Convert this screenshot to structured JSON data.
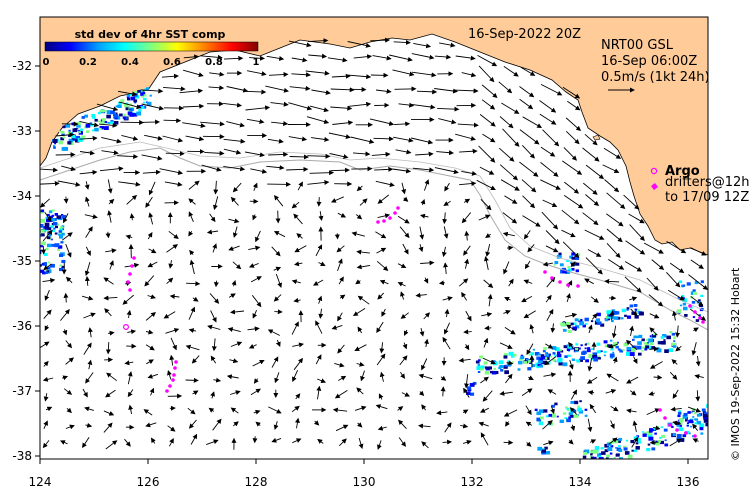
{
  "date_label": "16-Sep-2022 20Z",
  "model_info": {
    "line1": "NRT00 GSL",
    "line2": "16-Sep 06:00Z",
    "line3": "0.5m/s (1kt 24h)"
  },
  "legend": {
    "argo_label": "Argo",
    "drifters_line1": "drifters@12h",
    "drifters_line2": "to 17/09 12Z"
  },
  "colorbar": {
    "title": "std dev of 4hr SST comp",
    "ticks": [
      "0",
      "0.2",
      "0.4",
      "0.6",
      "0.8",
      "1"
    ],
    "colors": [
      "#000080",
      "#0000ff",
      "#00a0ff",
      "#00ffff",
      "#80ff80",
      "#ffff00",
      "#ff8000",
      "#ff0000",
      "#800000"
    ]
  },
  "credit": "© IMOS 19-Sep-2022 15:32 Hobart",
  "axes": {
    "x_ticks": [
      "124",
      "126",
      "128",
      "130",
      "132",
      "134",
      "136"
    ],
    "y_ticks": [
      "-32",
      "-33",
      "-34",
      "-35",
      "-36",
      "-37",
      "-38"
    ]
  },
  "colors": {
    "land": "#ffcc99",
    "argo": "#ff00ff",
    "contour": "#aaaaaa"
  }
}
